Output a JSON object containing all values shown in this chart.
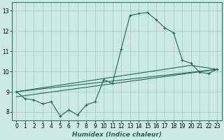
{
  "title": "",
  "xlabel": "Humidex (Indice chaleur)",
  "ylabel": "",
  "xlim": [
    -0.5,
    23.5
  ],
  "ylim": [
    7.6,
    13.4
  ],
  "xticks": [
    0,
    1,
    2,
    3,
    4,
    5,
    6,
    7,
    8,
    9,
    10,
    11,
    12,
    13,
    14,
    15,
    16,
    17,
    18,
    19,
    20,
    21,
    22,
    23
  ],
  "yticks": [
    8,
    9,
    10,
    11,
    12,
    13
  ],
  "bg_color": "#cce9e4",
  "grid_color": "#aaccc7",
  "line_color": "#1a6b5a",
  "line1_x": [
    0,
    1,
    2,
    3,
    4,
    5,
    6,
    7,
    8,
    9,
    10,
    11,
    12,
    13,
    14,
    15,
    16,
    17,
    18,
    19,
    20,
    21,
    22,
    23
  ],
  "line1_y": [
    9.0,
    8.65,
    8.6,
    8.4,
    8.5,
    7.8,
    8.1,
    7.85,
    8.35,
    8.5,
    9.6,
    9.4,
    11.1,
    12.75,
    12.85,
    12.9,
    12.55,
    12.15,
    11.9,
    10.55,
    10.4,
    9.95,
    9.9,
    10.1
  ],
  "line2_x": [
    0,
    23
  ],
  "line2_y": [
    9.0,
    10.1
  ],
  "line3_x": [
    0,
    23
  ],
  "line3_y": [
    8.75,
    10.1
  ],
  "line4_x": [
    0,
    20,
    23
  ],
  "line4_y": [
    9.0,
    10.3,
    10.1
  ]
}
